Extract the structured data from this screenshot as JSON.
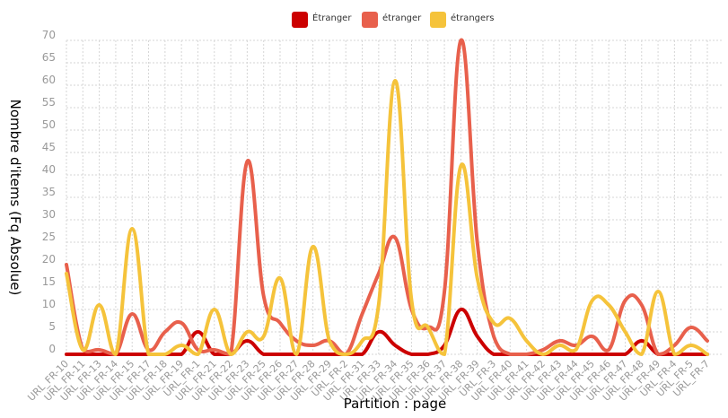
{
  "chart_data": {
    "type": "line",
    "xlabel": "Partition : page",
    "ylabel": "Nombre d'items (Fq Absolue)",
    "ylim": [
      0,
      70
    ],
    "yticks": [
      0,
      5,
      10,
      15,
      20,
      25,
      30,
      35,
      40,
      45,
      50,
      55,
      60,
      65,
      70
    ],
    "grid": true,
    "legend_position": "top-center",
    "categories": [
      "URL_FR-10",
      "URL_FR-11",
      "URL_FR-13",
      "URL_FR-14",
      "URL_FR-15",
      "URL_FR-17",
      "URL_FR-18",
      "URL_FR-19",
      "URL_FR-1",
      "URL_FR-21",
      "URL_FR-22",
      "URL_FR-23",
      "URL_FR-25",
      "URL_FR-26",
      "URL_FR-27",
      "URL_FR-28",
      "URL_FR-29",
      "URL_FR-2",
      "URL_FR-31",
      "URL_FR-33",
      "URL_FR-34",
      "URL_FR-35",
      "URL_FR-36",
      "URL_FR-37",
      "URL_FR-38",
      "URL_FR-39",
      "URL_FR-3",
      "URL_FR-40",
      "URL_FR-41",
      "URL_FR-42",
      "URL_FR-43",
      "URL_FR-44",
      "URL_FR-45",
      "URL_FR-46",
      "URL_FR-47",
      "URL_FR-48",
      "URL_FR-49",
      "URL_FR-4",
      "URL_FR-5",
      "URL_FR-7"
    ],
    "series": [
      {
        "name": "Étranger",
        "color": "#cc0000",
        "values": [
          0,
          0,
          0,
          0,
          0,
          0,
          0,
          0,
          5,
          0,
          0,
          3,
          0,
          0,
          0,
          0,
          0,
          0,
          0,
          5,
          2,
          0,
          0,
          2,
          10,
          4,
          0,
          0,
          0,
          0,
          0,
          0,
          0,
          0,
          0,
          3,
          0,
          0,
          0,
          0
        ]
      },
      {
        "name": "étranger",
        "color": "#e8604c",
        "values": [
          20,
          1,
          1,
          0,
          9,
          1,
          5,
          7,
          1,
          1,
          0,
          43,
          13,
          7,
          3,
          2,
          3,
          0,
          9,
          18,
          26,
          10,
          6,
          14,
          70,
          25,
          4,
          0,
          0,
          1,
          3,
          2,
          4,
          1,
          12,
          11,
          0,
          2,
          6,
          3
        ]
      },
      {
        "name": "étrangers",
        "color": "#f5c33b",
        "values": [
          18,
          1,
          11,
          0,
          28,
          0,
          0,
          2,
          0,
          10,
          0,
          5,
          4,
          17,
          0,
          24,
          3,
          0,
          3,
          11,
          61,
          12,
          6,
          0,
          42,
          17,
          7,
          8,
          3,
          0,
          2,
          1,
          12,
          11,
          5,
          0,
          14,
          0,
          2,
          0
        ]
      }
    ]
  }
}
